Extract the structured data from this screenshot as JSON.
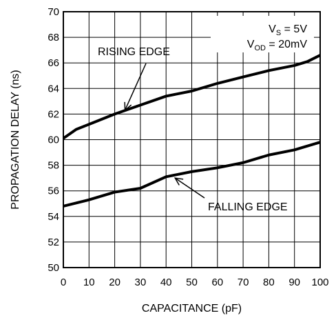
{
  "chart_data": {
    "type": "line",
    "xlabel": "CAPACITANCE (pF)",
    "ylabel": "PROPAGATION DELAY (ns)",
    "xlim": [
      0,
      100
    ],
    "ylim": [
      50,
      70
    ],
    "xticks": [
      0,
      10,
      20,
      30,
      40,
      50,
      60,
      70,
      80,
      90,
      100
    ],
    "yticks": [
      50,
      52,
      54,
      56,
      58,
      60,
      62,
      64,
      66,
      68,
      70
    ],
    "grid": true,
    "series": [
      {
        "name": "RISING EDGE",
        "x": [
          0,
          5,
          10,
          20,
          30,
          40,
          50,
          60,
          70,
          80,
          90,
          95,
          100
        ],
        "y": [
          60.1,
          60.8,
          61.2,
          62.0,
          62.7,
          63.4,
          63.8,
          64.4,
          64.9,
          65.4,
          65.8,
          66.1,
          66.6
        ]
      },
      {
        "name": "FALLING EDGE",
        "x": [
          0,
          10,
          20,
          30,
          40,
          50,
          60,
          70,
          80,
          90,
          100
        ],
        "y": [
          54.8,
          55.3,
          55.9,
          56.2,
          57.1,
          57.5,
          57.8,
          58.2,
          58.8,
          59.2,
          59.8
        ]
      }
    ],
    "conditions": {
      "vs_sym": "V",
      "vs_sub": "S",
      "vs_val": " = 5V",
      "vod_sym": "V",
      "vod_sub": "OD",
      "vod_val": " = 20mV"
    }
  }
}
